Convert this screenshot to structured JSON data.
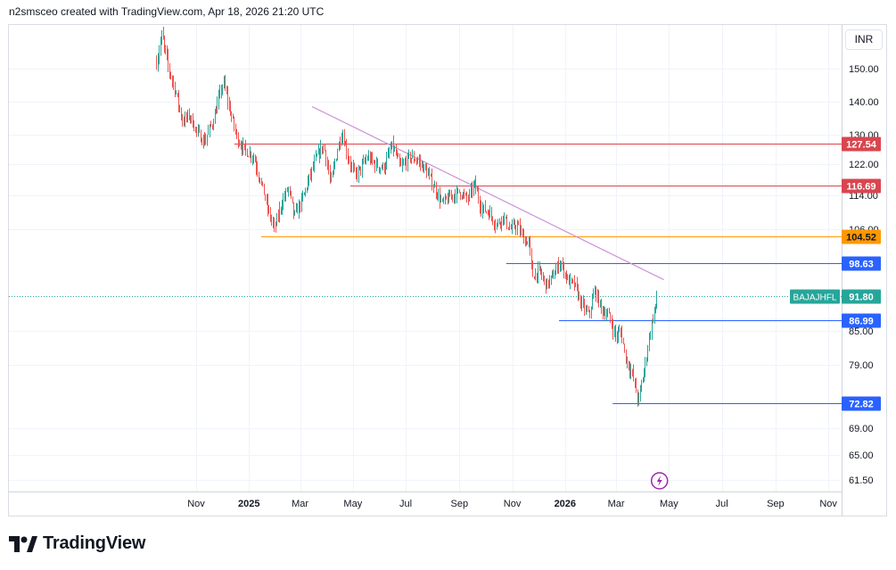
{
  "header": {
    "credit": "n2smsceo created with TradingView.com, Apr 18, 2026 21:20 UTC"
  },
  "toolbar": {
    "currency": "INR"
  },
  "footer": {
    "brand": "TradingView"
  },
  "colors": {
    "up": "#26a69a",
    "down": "#ef5350",
    "resistance": "#d9464f",
    "support": "#2962ff",
    "orange": "#ff9800",
    "trend": "#ce93d8",
    "grid": "#f0f3fa",
    "current": "#26a69a",
    "event": "#9c27b0"
  },
  "chart_data": {
    "type": "candlestick",
    "symbol": "BAJAJHFL",
    "last_price": 91.8,
    "y_ticks": [
      61.5,
      65.0,
      69.0,
      72.82,
      79.0,
      85.0,
      86.99,
      91.8,
      98.63,
      104.52,
      106.0,
      114.0,
      116.69,
      122.0,
      127.54,
      130.0,
      140.0,
      150.0
    ],
    "y_tick_labels": [
      "61.50",
      "65.00",
      "69.00",
      "79.00",
      "85.00",
      "106.00",
      "114.00",
      "122.00",
      "130.00",
      "140.00",
      "150.00"
    ],
    "x_tick_labels": [
      {
        "label": "Nov",
        "date": "2024-11-01",
        "bold": false
      },
      {
        "label": "2025",
        "date": "2025-01-01",
        "bold": true
      },
      {
        "label": "Mar",
        "date": "2025-03-01",
        "bold": false
      },
      {
        "label": "May",
        "date": "2025-05-01",
        "bold": false
      },
      {
        "label": "Jul",
        "date": "2025-07-01",
        "bold": false
      },
      {
        "label": "Sep",
        "date": "2025-09-01",
        "bold": false
      },
      {
        "label": "Nov",
        "date": "2025-11-01",
        "bold": false
      },
      {
        "label": "2026",
        "date": "2026-01-01",
        "bold": true
      },
      {
        "label": "Mar",
        "date": "2026-03-01",
        "bold": false
      },
      {
        "label": "May",
        "date": "2026-05-01",
        "bold": false
      },
      {
        "label": "Jul",
        "date": "2026-07-01",
        "bold": false
      },
      {
        "label": "Sep",
        "date": "2026-09-01",
        "bold": false
      },
      {
        "label": "Nov",
        "date": "2026-11-01",
        "bold": false
      }
    ],
    "horizontal_levels": [
      {
        "value": 127.54,
        "label": "127.54",
        "role": "resistance",
        "from": "2024-12-15"
      },
      {
        "value": 116.69,
        "label": "116.69",
        "role": "resistance",
        "from": "2025-04-28"
      },
      {
        "value": 104.52,
        "label": "104.52",
        "role": "orange",
        "from": "2025-01-15"
      },
      {
        "value": 98.63,
        "label": "98.63",
        "role": "support",
        "from": "2025-10-25"
      },
      {
        "value": 86.99,
        "label": "86.99",
        "role": "support",
        "from": "2025-12-25"
      },
      {
        "value": 72.82,
        "label": "72.82",
        "role": "support",
        "from": "2026-02-25"
      }
    ],
    "trendline": {
      "start": {
        "date": "2025-03-15",
        "value": 138.5
      },
      "end": {
        "date": "2026-04-25",
        "value": 95.2
      }
    },
    "event_marker": {
      "date": "2026-04-20",
      "icon": "lightning-icon"
    },
    "price_path": [
      [
        "2024-09-16",
        152
      ],
      [
        "2024-09-22",
        160
      ],
      [
        "2024-09-30",
        150
      ],
      [
        "2024-10-08",
        143
      ],
      [
        "2024-10-16",
        134
      ],
      [
        "2024-10-24",
        136
      ],
      [
        "2024-11-01",
        131
      ],
      [
        "2024-11-10",
        128
      ],
      [
        "2024-11-20",
        134
      ],
      [
        "2024-12-02",
        146
      ],
      [
        "2024-12-10",
        137
      ],
      [
        "2024-12-18",
        129
      ],
      [
        "2024-12-26",
        126
      ],
      [
        "2025-01-06",
        124
      ],
      [
        "2025-01-14",
        118
      ],
      [
        "2025-01-22",
        111
      ],
      [
        "2025-01-30",
        106
      ],
      [
        "2025-02-07",
        112
      ],
      [
        "2025-02-15",
        116
      ],
      [
        "2025-02-22",
        109
      ],
      [
        "2025-03-03",
        113
      ],
      [
        "2025-03-12",
        119
      ],
      [
        "2025-03-20",
        124
      ],
      [
        "2025-03-28",
        127
      ],
      [
        "2025-04-05",
        117
      ],
      [
        "2025-04-12",
        125
      ],
      [
        "2025-04-18",
        131
      ],
      [
        "2025-04-25",
        124
      ],
      [
        "2025-05-03",
        119
      ],
      [
        "2025-05-10",
        121
      ],
      [
        "2025-05-18",
        124
      ],
      [
        "2025-05-26",
        122
      ],
      [
        "2025-06-05",
        121
      ],
      [
        "2025-06-15",
        127
      ],
      [
        "2025-06-25",
        121
      ],
      [
        "2025-07-05",
        124
      ],
      [
        "2025-07-15",
        123
      ],
      [
        "2025-07-25",
        120
      ],
      [
        "2025-08-03",
        116
      ],
      [
        "2025-08-12",
        112
      ],
      [
        "2025-08-22",
        114
      ],
      [
        "2025-09-01",
        115
      ],
      [
        "2025-09-10",
        113
      ],
      [
        "2025-09-18",
        117
      ],
      [
        "2025-09-26",
        111
      ],
      [
        "2025-10-05",
        110
      ],
      [
        "2025-10-13",
        107
      ],
      [
        "2025-10-21",
        109
      ],
      [
        "2025-10-29",
        106
      ],
      [
        "2025-11-06",
        107
      ],
      [
        "2025-11-14",
        104
      ],
      [
        "2025-11-20",
        103
      ],
      [
        "2025-11-24",
        96
      ],
      [
        "2025-12-02",
        97
      ],
      [
        "2025-12-10",
        94
      ],
      [
        "2025-12-18",
        96
      ],
      [
        "2025-12-26",
        99
      ],
      [
        "2026-01-04",
        95
      ],
      [
        "2026-01-12",
        94
      ],
      [
        "2026-01-20",
        90
      ],
      [
        "2026-01-28",
        88
      ],
      [
        "2026-02-04",
        93
      ],
      [
        "2026-02-12",
        89
      ],
      [
        "2026-02-20",
        88
      ],
      [
        "2026-02-28",
        84
      ],
      [
        "2026-03-06",
        85
      ],
      [
        "2026-03-12",
        80
      ],
      [
        "2026-03-18",
        78
      ],
      [
        "2026-03-22",
        76
      ],
      [
        "2026-03-26",
        73
      ],
      [
        "2026-03-30",
        76
      ],
      [
        "2026-04-03",
        79
      ],
      [
        "2026-04-07",
        83
      ],
      [
        "2026-04-10",
        86
      ],
      [
        "2026-04-14",
        89
      ],
      [
        "2026-04-17",
        91.8
      ]
    ]
  }
}
